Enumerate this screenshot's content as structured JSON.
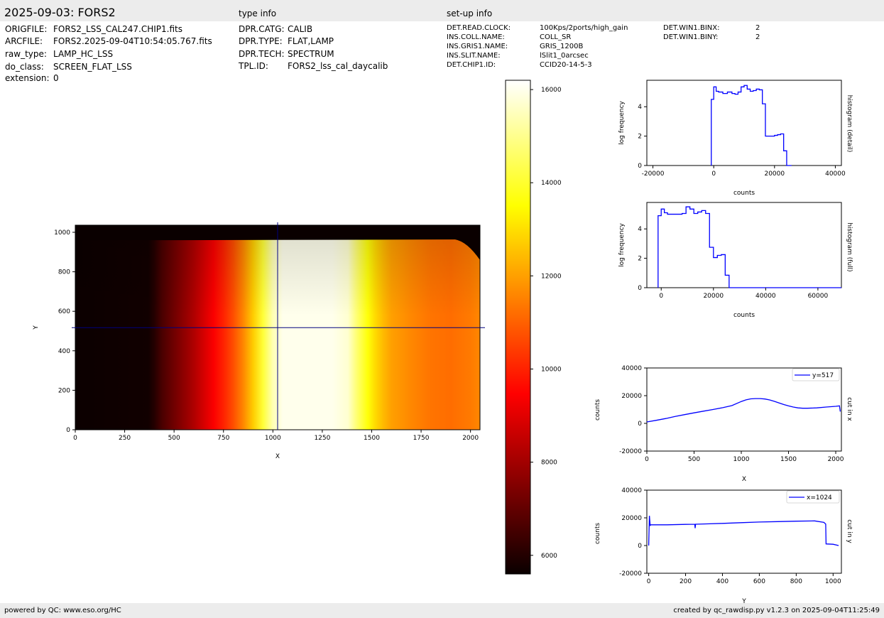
{
  "header": {
    "title": "2025-09-03: FORS2",
    "type_info_label": "type info",
    "setup_info_label": "set-up info"
  },
  "file_info": [
    {
      "key": "ORIGFILE:",
      "value": "FORS2_LSS_CAL247.CHIP1.fits"
    },
    {
      "key": "ARCFILE:",
      "value": "FORS2.2025-09-04T10:54:05.767.fits"
    },
    {
      "key": "raw_type:",
      "value": "LAMP_HC_LSS"
    },
    {
      "key": "do_class:",
      "value": "SCREEN_FLAT_LSS"
    },
    {
      "key": "extension:",
      "value": "0"
    }
  ],
  "type_info": [
    {
      "key": "DPR.CATG:",
      "value": "CALIB"
    },
    {
      "key": "DPR.TYPE:",
      "value": "FLAT,LAMP"
    },
    {
      "key": "DPR.TECH:",
      "value": "SPECTRUM"
    },
    {
      "key": "TPL.ID:",
      "value": "FORS2_lss_cal_daycalib"
    }
  ],
  "setup_info": [
    {
      "key": "DET.READ.CLOCK:",
      "value": "100Kps/2ports/high_gain"
    },
    {
      "key": "INS.COLL.NAME:",
      "value": "COLL_SR"
    },
    {
      "key": "INS.GRIS1.NAME:",
      "value": "GRIS_1200B"
    },
    {
      "key": "INS.SLIT.NAME:",
      "value": "lSlit1_0arcsec"
    },
    {
      "key": "DET.CHIP1.ID:",
      "value": "CCID20-14-5-3"
    }
  ],
  "setup_info2": [
    {
      "key": "DET.WIN1.BINX:",
      "value": "2"
    },
    {
      "key": "DET.WIN1.BINY:",
      "value": "2"
    }
  ],
  "footer": {
    "left": "powered by QC: www.eso.org/HC",
    "right": "created by qc_rawdisp.py v1.2.3 on 2025-09-04T11:25:49"
  },
  "colors": {
    "line": "#0000ff",
    "crosshair": "#00007f",
    "panel_bg": "#ececec"
  },
  "chart_data": [
    {
      "id": "image",
      "type": "heatmap",
      "xlabel": "X",
      "ylabel": "Y",
      "xlim": [
        0,
        2048
      ],
      "ylim": [
        0,
        1036
      ],
      "xticks": [
        0,
        250,
        500,
        750,
        1000,
        1250,
        1500,
        1750,
        2000
      ],
      "yticks": [
        0,
        200,
        400,
        600,
        800,
        1000
      ],
      "crosshair": {
        "x": 1024,
        "y": 517
      },
      "illuminated_top_y": 960,
      "column_profile": {
        "x": [
          0,
          370,
          400,
          440,
          500,
          550,
          600,
          650,
          700,
          750,
          800,
          850,
          900,
          950,
          1000,
          1050,
          1100,
          1200,
          1300,
          1380,
          1420,
          1480,
          1520,
          1560,
          1600,
          1700,
          1800,
          1900,
          2000,
          2048
        ],
        "counts": [
          5500,
          5700,
          6000,
          6600,
          7200,
          7700,
          8200,
          8800,
          9400,
          10000,
          10700,
          11600,
          12700,
          14100,
          15400,
          16000,
          16000,
          16000,
          16000,
          15700,
          14800,
          13600,
          12900,
          12400,
          12000,
          11600,
          11300,
          11200,
          11400,
          11600
        ]
      }
    },
    {
      "id": "colorbar",
      "type": "heatmap",
      "range": [
        5600,
        16200
      ],
      "ticks": [
        6000,
        8000,
        10000,
        12000,
        14000,
        16000
      ],
      "colormap": "hot"
    },
    {
      "id": "hist-detail",
      "type": "line",
      "xlabel": "counts",
      "ylabel": "log frequency",
      "side_label": "histogram (detail)",
      "xlim": [
        -22000,
        42000
      ],
      "ylim": [
        0,
        5.8
      ],
      "xticks": [
        -20000,
        0,
        20000,
        40000
      ],
      "yticks": [
        0,
        2,
        4
      ],
      "steps": {
        "edges": [
          -800,
          0,
          800,
          1600,
          3000,
          4500,
          6000,
          7000,
          8000,
          9000,
          10000,
          11000,
          12000,
          13000,
          14000,
          15000,
          16000,
          17000,
          18000,
          19000,
          20000,
          21000,
          22000,
          23000,
          24000,
          25600
        ],
        "values": [
          4.5,
          5.35,
          5.05,
          5.0,
          4.9,
          5.0,
          4.9,
          4.85,
          5.0,
          5.35,
          5.45,
          5.2,
          5.05,
          5.1,
          5.2,
          5.15,
          4.2,
          2.0,
          2.0,
          2.0,
          2.05,
          2.1,
          2.15,
          1.0,
          0.0
        ]
      }
    },
    {
      "id": "hist-full",
      "type": "line",
      "xlabel": "counts",
      "ylabel": "log frequency",
      "side_label": "histogram (full)",
      "xlim": [
        -5500,
        69000
      ],
      "ylim": [
        0,
        5.8
      ],
      "xticks": [
        0,
        20000,
        40000,
        60000
      ],
      "yticks": [
        0,
        2,
        4
      ],
      "steps": {
        "edges": [
          -1200,
          0,
          1200,
          2400,
          4000,
          6000,
          8000,
          9500,
          11000,
          12500,
          14000,
          15500,
          17000,
          18500,
          20000,
          21500,
          23000,
          24500,
          26000
        ],
        "values": [
          4.9,
          5.35,
          5.1,
          5.0,
          5.0,
          5.0,
          5.05,
          5.5,
          5.35,
          5.05,
          5.15,
          5.25,
          5.05,
          2.75,
          2.05,
          2.2,
          2.25,
          0.85
        ]
      },
      "tail": {
        "from": 26000,
        "to": 69000,
        "value": 0
      }
    },
    {
      "id": "cut-x",
      "type": "line",
      "xlabel": "X",
      "ylabel": "counts",
      "side_label": "cut in x",
      "legend": "y=517",
      "xlim": [
        0,
        2060
      ],
      "ylim": [
        -20000,
        40000
      ],
      "xticks": [
        0,
        500,
        1000,
        1500,
        2000
      ],
      "yticks": [
        -20000,
        0,
        20000,
        40000
      ],
      "x": [
        0,
        100,
        200,
        300,
        400,
        500,
        600,
        700,
        800,
        900,
        1000,
        1050,
        1100,
        1150,
        1200,
        1250,
        1300,
        1350,
        1400,
        1450,
        1500,
        1550,
        1600,
        1650,
        1700,
        1800,
        1900,
        2000,
        2040,
        2048
      ],
      "values": [
        1000,
        2200,
        3500,
        5000,
        6300,
        7600,
        8800,
        10000,
        11300,
        12800,
        15800,
        17000,
        17700,
        17900,
        17900,
        17600,
        16900,
        15900,
        14700,
        13600,
        12600,
        11800,
        11200,
        10900,
        10900,
        11200,
        11800,
        12300,
        12600,
        8500
      ]
    },
    {
      "id": "cut-y",
      "type": "line",
      "xlabel": "Y",
      "ylabel": "counts",
      "side_label": "cut in y",
      "legend": "x=1024",
      "xlim": [
        -10,
        1045
      ],
      "ylim": [
        -20000,
        40000
      ],
      "xticks": [
        0,
        200,
        400,
        600,
        800,
        1000
      ],
      "yticks": [
        -20000,
        0,
        20000,
        40000
      ],
      "x": [
        0,
        4,
        8,
        12,
        100,
        200,
        250,
        252,
        254,
        300,
        400,
        500,
        600,
        700,
        800,
        900,
        950,
        960,
        962,
        1000,
        1030
      ],
      "values": [
        0,
        21500,
        14500,
        15000,
        15000,
        15300,
        15400,
        12500,
        15400,
        15600,
        16000,
        16500,
        17000,
        17300,
        17600,
        17800,
        16700,
        15500,
        1200,
        900,
        0
      ]
    }
  ]
}
